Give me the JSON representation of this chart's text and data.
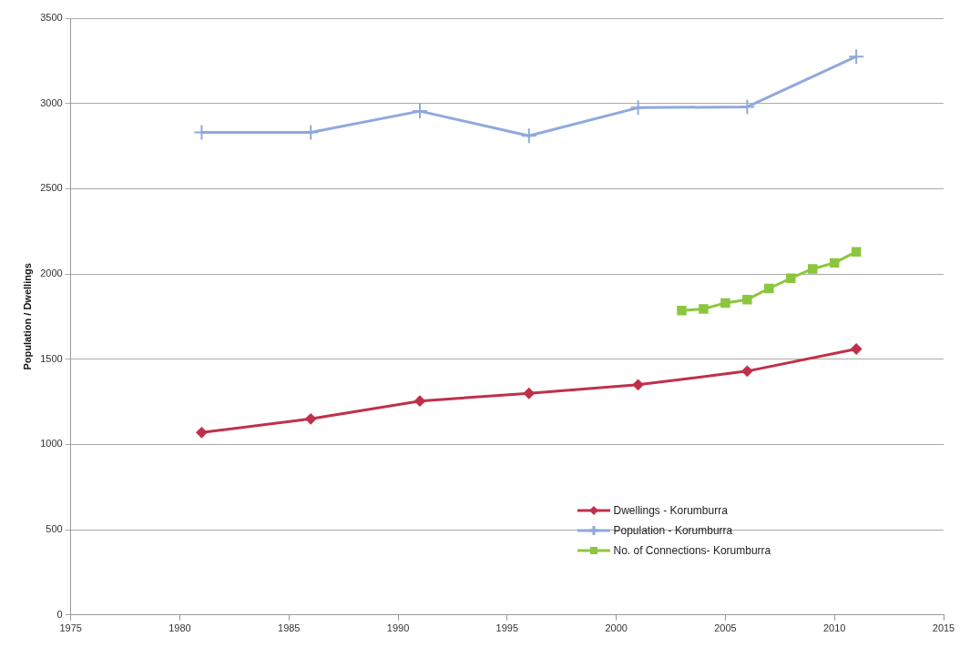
{
  "chart_data": {
    "type": "line",
    "ylabel": "Population / Dwellings",
    "xlim": [
      1975,
      2015
    ],
    "xticks": [
      1975,
      1980,
      1985,
      1990,
      1995,
      2000,
      2005,
      2010,
      2015
    ],
    "ylim": [
      0,
      3500
    ],
    "yticks": [
      0,
      500,
      1000,
      1500,
      2000,
      2500,
      3000,
      3500
    ],
    "grid": "y",
    "legend": "bottom right",
    "line_style": "solid",
    "series": [
      {
        "name": "Dwellings - Korumburra",
        "color": "#c0304a",
        "marker": "diamond",
        "x": [
          1981,
          1986,
          1991,
          1996,
          2001,
          2006,
          2011
        ],
        "values": [
          1070,
          1150,
          1255,
          1300,
          1350,
          1430,
          1560
        ]
      },
      {
        "name": "Population - Korumburra",
        "color": "#8fa9dc",
        "marker": "cross",
        "x": [
          1981,
          1986,
          1991,
          1996,
          2001,
          2006,
          2011
        ],
        "values": [
          2830,
          2830,
          2955,
          2810,
          2975,
          2980,
          3275
        ]
      },
      {
        "name": "No. of Connections- Korumburra",
        "color": "#8cc63f",
        "marker": "square",
        "x": [
          2003,
          2004,
          2005,
          2006,
          2007,
          2008,
          2009,
          2010,
          2011
        ],
        "values": [
          1785,
          1795,
          1830,
          1850,
          1915,
          1975,
          2030,
          2065,
          2130
        ]
      }
    ]
  }
}
